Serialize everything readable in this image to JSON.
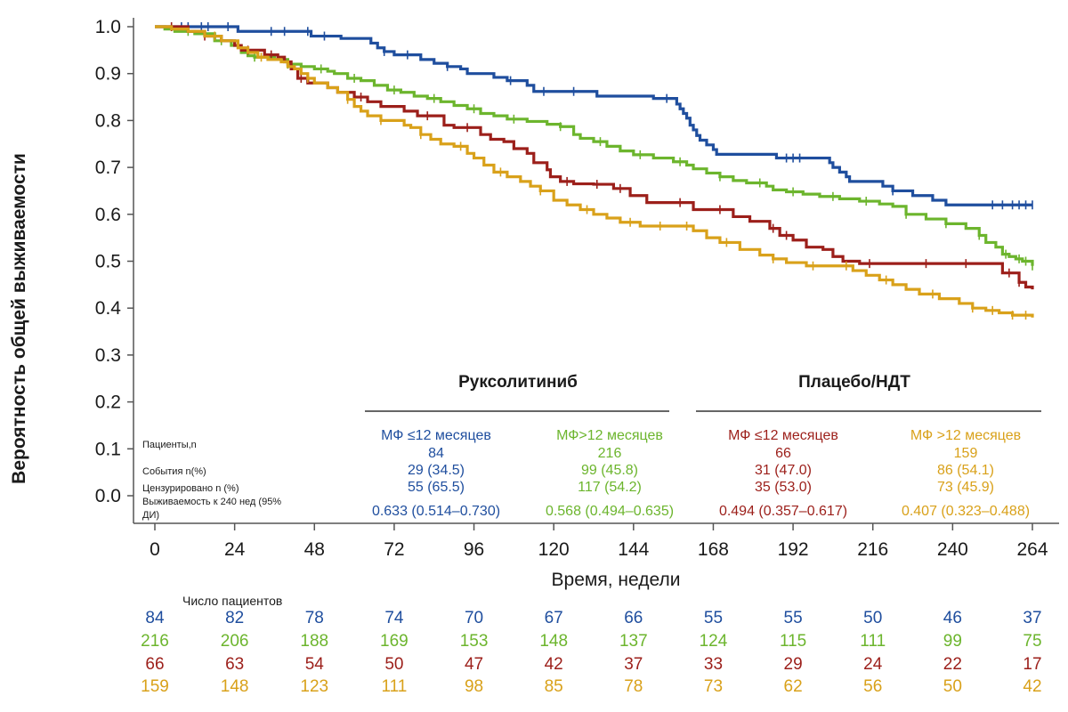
{
  "chart_data": {
    "type": "line",
    "ylabel": "Вероятность общей выживаемости",
    "xlabel": "Время, недели",
    "xlim": [
      0,
      264
    ],
    "ylim": [
      0,
      1
    ],
    "x_ticks": [
      "0",
      "24",
      "48",
      "72",
      "96",
      "120",
      "144",
      "168",
      "192",
      "216",
      "240",
      "264"
    ],
    "y_ticks": [
      "0.0",
      "0.1",
      "0.2",
      "0.3",
      "0.4",
      "0.5",
      "0.6",
      "0.7",
      "0.8",
      "0.9",
      "1.0"
    ],
    "groups": [
      {
        "title": "Руксолитиниб",
        "series_indices": [
          0,
          1
        ]
      },
      {
        "title": "Плацебо/НДТ",
        "series_indices": [
          2,
          3
        ]
      }
    ],
    "stat_labels": {
      "patients": "Пациенты,n",
      "events": "События n(%)",
      "censored": "Цензурировано n (%)",
      "survival_line1": "Выживаемость к 240 нед (95%",
      "survival_line2": "ДИ)"
    },
    "series": [
      {
        "name": "МФ ≤12 месяцев",
        "color": "#1f4e9e",
        "patients": "84",
        "events": "29 (34.5)",
        "censored": "55 (65.5)",
        "survival": "0.633 (0.514–0.730)",
        "steps": [
          [
            0,
            1.0
          ],
          [
            25,
            0.99
          ],
          [
            33,
            0.99
          ],
          [
            38,
            0.99
          ],
          [
            47,
            0.98
          ],
          [
            56,
            0.975
          ],
          [
            65,
            0.965
          ],
          [
            67,
            0.955
          ],
          [
            69,
            0.947
          ],
          [
            72,
            0.94
          ],
          [
            80,
            0.93
          ],
          [
            84,
            0.922
          ],
          [
            88,
            0.915
          ],
          [
            92,
            0.91
          ],
          [
            94,
            0.9
          ],
          [
            102,
            0.892
          ],
          [
            106,
            0.885
          ],
          [
            112,
            0.875
          ],
          [
            114,
            0.862
          ],
          [
            132,
            0.862
          ],
          [
            133,
            0.852
          ],
          [
            149,
            0.852
          ],
          [
            150,
            0.847
          ],
          [
            155,
            0.847
          ],
          [
            157,
            0.835
          ],
          [
            158,
            0.825
          ],
          [
            159,
            0.815
          ],
          [
            160,
            0.805
          ],
          [
            161,
            0.79
          ],
          [
            162,
            0.78
          ],
          [
            163,
            0.768
          ],
          [
            164,
            0.758
          ],
          [
            166,
            0.748
          ],
          [
            168,
            0.738
          ],
          [
            169,
            0.728
          ],
          [
            185,
            0.728
          ],
          [
            187,
            0.72
          ],
          [
            202,
            0.72
          ],
          [
            203,
            0.71
          ],
          [
            204,
            0.7
          ],
          [
            206,
            0.69
          ],
          [
            208,
            0.68
          ],
          [
            209,
            0.67
          ],
          [
            217,
            0.67
          ],
          [
            219,
            0.66
          ],
          [
            222,
            0.65
          ],
          [
            228,
            0.64
          ],
          [
            234,
            0.63
          ],
          [
            238,
            0.62
          ],
          [
            264,
            0.62
          ]
        ],
        "censor_x": [
          8,
          10,
          14,
          16,
          22,
          35,
          39,
          46,
          51,
          69,
          76,
          88,
          107,
          117,
          126,
          154,
          190,
          192,
          194,
          222,
          252,
          255,
          258,
          260,
          262,
          264
        ]
      },
      {
        "name": "МФ>12 месяцев",
        "color": "#6cb52d",
        "patients": "216",
        "events": "99 (45.8)",
        "censored": "117 (54.2)",
        "survival": "0.568 (0.494–0.635)",
        "steps": [
          [
            0,
            1.0
          ],
          [
            3,
            0.995
          ],
          [
            6,
            0.99
          ],
          [
            12,
            0.985
          ],
          [
            18,
            0.97
          ],
          [
            23,
            0.96
          ],
          [
            26,
            0.945
          ],
          [
            28,
            0.938
          ],
          [
            30,
            0.935
          ],
          [
            36,
            0.93
          ],
          [
            40,
            0.92
          ],
          [
            44,
            0.915
          ],
          [
            48,
            0.91
          ],
          [
            52,
            0.905
          ],
          [
            54,
            0.9
          ],
          [
            58,
            0.89
          ],
          [
            62,
            0.885
          ],
          [
            66,
            0.875
          ],
          [
            70,
            0.865
          ],
          [
            74,
            0.86
          ],
          [
            78,
            0.852
          ],
          [
            82,
            0.847
          ],
          [
            86,
            0.84
          ],
          [
            90,
            0.832
          ],
          [
            94,
            0.825
          ],
          [
            98,
            0.815
          ],
          [
            102,
            0.81
          ],
          [
            106,
            0.803
          ],
          [
            112,
            0.798
          ],
          [
            118,
            0.792
          ],
          [
            122,
            0.787
          ],
          [
            126,
            0.77
          ],
          [
            128,
            0.762
          ],
          [
            132,
            0.755
          ],
          [
            136,
            0.745
          ],
          [
            140,
            0.735
          ],
          [
            144,
            0.727
          ],
          [
            150,
            0.72
          ],
          [
            156,
            0.712
          ],
          [
            160,
            0.705
          ],
          [
            162,
            0.697
          ],
          [
            166,
            0.688
          ],
          [
            170,
            0.68
          ],
          [
            174,
            0.672
          ],
          [
            178,
            0.667
          ],
          [
            184,
            0.66
          ],
          [
            186,
            0.652
          ],
          [
            190,
            0.648
          ],
          [
            195,
            0.643
          ],
          [
            200,
            0.638
          ],
          [
            206,
            0.633
          ],
          [
            212,
            0.628
          ],
          [
            218,
            0.622
          ],
          [
            222,
            0.617
          ],
          [
            226,
            0.6
          ],
          [
            232,
            0.59
          ],
          [
            238,
            0.58
          ],
          [
            244,
            0.57
          ],
          [
            248,
            0.555
          ],
          [
            250,
            0.54
          ],
          [
            253,
            0.53
          ],
          [
            255,
            0.515
          ],
          [
            257,
            0.51
          ],
          [
            259,
            0.505
          ],
          [
            261,
            0.5
          ],
          [
            264,
            0.49
          ]
        ],
        "censor_x": [
          10,
          20,
          30,
          40,
          50,
          60,
          72,
          84,
          96,
          108,
          122,
          134,
          146,
          158,
          170,
          182,
          192,
          204,
          214,
          226,
          238,
          248,
          256,
          260,
          262,
          264
        ]
      },
      {
        "name": "МФ ≤12 месяцев",
        "color": "#9c1f1a",
        "patients": "66",
        "events": "31 (47.0)",
        "censored": "35 (53.0)",
        "survival": "0.494 (0.357–0.617)",
        "steps": [
          [
            0,
            1.0
          ],
          [
            10,
            0.99
          ],
          [
            15,
            0.98
          ],
          [
            20,
            0.97
          ],
          [
            24,
            0.96
          ],
          [
            26,
            0.95
          ],
          [
            33,
            0.94
          ],
          [
            37,
            0.935
          ],
          [
            39,
            0.925
          ],
          [
            41,
            0.91
          ],
          [
            43,
            0.89
          ],
          [
            46,
            0.88
          ],
          [
            52,
            0.87
          ],
          [
            55,
            0.86
          ],
          [
            60,
            0.85
          ],
          [
            64,
            0.84
          ],
          [
            68,
            0.83
          ],
          [
            75,
            0.82
          ],
          [
            79,
            0.81
          ],
          [
            87,
            0.79
          ],
          [
            90,
            0.785
          ],
          [
            98,
            0.77
          ],
          [
            101,
            0.76
          ],
          [
            105,
            0.755
          ],
          [
            108,
            0.74
          ],
          [
            112,
            0.73
          ],
          [
            114,
            0.71
          ],
          [
            118,
            0.695
          ],
          [
            119,
            0.68
          ],
          [
            122,
            0.67
          ],
          [
            126,
            0.665
          ],
          [
            132,
            0.664
          ],
          [
            138,
            0.655
          ],
          [
            143,
            0.64
          ],
          [
            148,
            0.625
          ],
          [
            158,
            0.625
          ],
          [
            162,
            0.61
          ],
          [
            171,
            0.61
          ],
          [
            174,
            0.595
          ],
          [
            179,
            0.585
          ],
          [
            185,
            0.57
          ],
          [
            188,
            0.555
          ],
          [
            192,
            0.545
          ],
          [
            196,
            0.53
          ],
          [
            201,
            0.525
          ],
          [
            204,
            0.51
          ],
          [
            207,
            0.5
          ],
          [
            212,
            0.495
          ],
          [
            250,
            0.495
          ],
          [
            255,
            0.475
          ],
          [
            260,
            0.455
          ],
          [
            262,
            0.445
          ],
          [
            264,
            0.44
          ]
        ],
        "censor_x": [
          5,
          15,
          28,
          35,
          44,
          62,
          82,
          94,
          124,
          133,
          140,
          158,
          170,
          186,
          190,
          215,
          232,
          244,
          257,
          260
        ]
      },
      {
        "name": "МФ >12 месяцев",
        "color": "#d9a11a",
        "patients": "159",
        "events": "86 (54.1)",
        "censored": "73 (45.9)",
        "survival": "0.407 (0.323–0.488)",
        "steps": [
          [
            0,
            1.0
          ],
          [
            5,
            0.995
          ],
          [
            10,
            0.99
          ],
          [
            15,
            0.98
          ],
          [
            20,
            0.97
          ],
          [
            25,
            0.955
          ],
          [
            28,
            0.945
          ],
          [
            31,
            0.935
          ],
          [
            34,
            0.93
          ],
          [
            38,
            0.925
          ],
          [
            40,
            0.915
          ],
          [
            42,
            0.91
          ],
          [
            44,
            0.9
          ],
          [
            46,
            0.89
          ],
          [
            48,
            0.88
          ],
          [
            52,
            0.87
          ],
          [
            55,
            0.86
          ],
          [
            58,
            0.845
          ],
          [
            60,
            0.83
          ],
          [
            62,
            0.82
          ],
          [
            64,
            0.81
          ],
          [
            68,
            0.8
          ],
          [
            72,
            0.8
          ],
          [
            75,
            0.79
          ],
          [
            77,
            0.785
          ],
          [
            80,
            0.77
          ],
          [
            83,
            0.76
          ],
          [
            86,
            0.75
          ],
          [
            90,
            0.745
          ],
          [
            94,
            0.73
          ],
          [
            96,
            0.72
          ],
          [
            99,
            0.705
          ],
          [
            102,
            0.69
          ],
          [
            106,
            0.68
          ],
          [
            110,
            0.67
          ],
          [
            113,
            0.66
          ],
          [
            116,
            0.65
          ],
          [
            120,
            0.63
          ],
          [
            124,
            0.62
          ],
          [
            128,
            0.61
          ],
          [
            132,
            0.6
          ],
          [
            136,
            0.592
          ],
          [
            140,
            0.583
          ],
          [
            146,
            0.575
          ],
          [
            156,
            0.575
          ],
          [
            162,
            0.565
          ],
          [
            166,
            0.55
          ],
          [
            170,
            0.54
          ],
          [
            176,
            0.525
          ],
          [
            182,
            0.513
          ],
          [
            186,
            0.505
          ],
          [
            190,
            0.497
          ],
          [
            196,
            0.49
          ],
          [
            206,
            0.49
          ],
          [
            210,
            0.48
          ],
          [
            214,
            0.47
          ],
          [
            218,
            0.46
          ],
          [
            222,
            0.45
          ],
          [
            226,
            0.44
          ],
          [
            230,
            0.43
          ],
          [
            236,
            0.42
          ],
          [
            242,
            0.41
          ],
          [
            246,
            0.4
          ],
          [
            250,
            0.395
          ],
          [
            254,
            0.39
          ],
          [
            258,
            0.385
          ],
          [
            264,
            0.38
          ]
        ],
        "censor_x": [
          18,
          32,
          46,
          58,
          68,
          80,
          92,
          104,
          116,
          130,
          143,
          152,
          160,
          172,
          186,
          198,
          208,
          220,
          234,
          246,
          252,
          258,
          262
        ]
      }
    ],
    "risk_table": {
      "title": "Число пациентов",
      "rows": [
        [
          "84",
          "82",
          "78",
          "74",
          "70",
          "67",
          "66",
          "55",
          "55",
          "50",
          "46",
          "37"
        ],
        [
          "216",
          "206",
          "188",
          "169",
          "153",
          "148",
          "137",
          "124",
          "115",
          "111",
          "99",
          "75"
        ],
        [
          "66",
          "63",
          "54",
          "50",
          "47",
          "42",
          "37",
          "33",
          "29",
          "24",
          "22",
          "17"
        ],
        [
          "159",
          "148",
          "123",
          "111",
          "98",
          "85",
          "78",
          "73",
          "62",
          "56",
          "50",
          "42"
        ]
      ]
    }
  }
}
